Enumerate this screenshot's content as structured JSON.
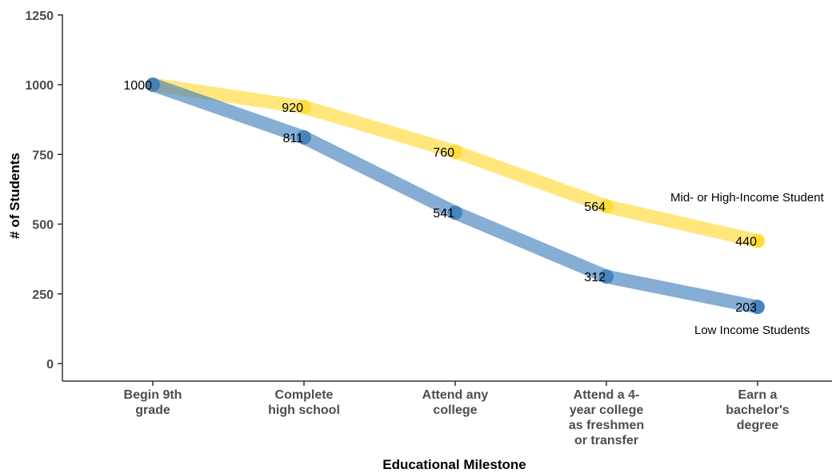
{
  "chart_data": {
    "type": "line",
    "title": "",
    "xlabel": "Educational Milestone",
    "ylabel": "# of Students",
    "ylim": [
      0,
      1250
    ],
    "yticks": [
      0,
      250,
      500,
      750,
      1000,
      1250
    ],
    "grid": false,
    "categories": [
      [
        "Begin 9th",
        "grade"
      ],
      [
        "Complete",
        "high school"
      ],
      [
        "Attend any",
        "college"
      ],
      [
        "Attend a 4-",
        "year college",
        "as freshmen",
        "or transfer"
      ],
      [
        "Earn a",
        "bachelor's",
        "degree"
      ]
    ],
    "series": [
      {
        "name": "Mid- or High-Income Student",
        "color": "#FFD92F",
        "values": [
          1000,
          920,
          760,
          564,
          440
        ]
      },
      {
        "name": "Low Income Students",
        "color": "#3C7DBA",
        "values": [
          1000,
          811,
          541,
          312,
          203
        ]
      }
    ]
  }
}
